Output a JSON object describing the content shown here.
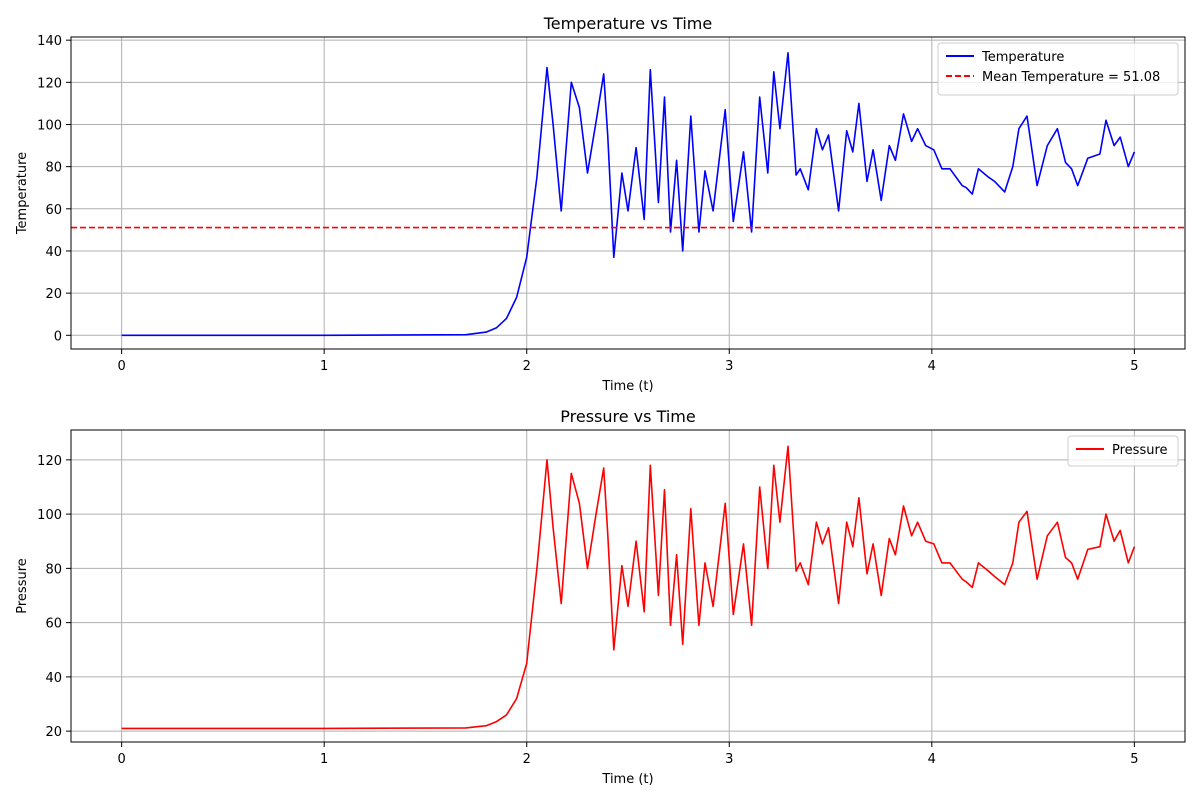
{
  "chart_data": [
    {
      "type": "line",
      "title": "Temperature vs Time",
      "xlabel": "Time (t)",
      "ylabel": "Temperature",
      "xlim": [
        -0.25,
        5.25
      ],
      "ylim": [
        -6.5,
        141.5
      ],
      "xticks": [
        0,
        1,
        2,
        3,
        4,
        5
      ],
      "yticks": [
        0,
        20,
        40,
        60,
        80,
        100,
        120,
        140
      ],
      "grid": true,
      "legend_position": "top-right",
      "series": [
        {
          "name": "Temperature",
          "color": "#0000ff",
          "style": "solid",
          "x": [
            0,
            1.0,
            1.7,
            1.8,
            1.85,
            1.9,
            1.95,
            2.0,
            2.05,
            2.1,
            2.13,
            2.17,
            2.22,
            2.26,
            2.3,
            2.34,
            2.38,
            2.4,
            2.43,
            2.47,
            2.5,
            2.54,
            2.58,
            2.61,
            2.65,
            2.68,
            2.71,
            2.74,
            2.77,
            2.81,
            2.85,
            2.88,
            2.92,
            2.98,
            3.02,
            3.07,
            3.11,
            3.15,
            3.19,
            3.22,
            3.25,
            3.29,
            3.33,
            3.35,
            3.39,
            3.43,
            3.46,
            3.49,
            3.54,
            3.58,
            3.61,
            3.64,
            3.68,
            3.71,
            3.75,
            3.79,
            3.82,
            3.86,
            3.9,
            3.93,
            3.97,
            4.01,
            4.05,
            4.09,
            4.15,
            4.17,
            4.2,
            4.23,
            4.28,
            4.31,
            4.36,
            4.4,
            4.43,
            4.47,
            4.52,
            4.57,
            4.62,
            4.66,
            4.69,
            4.72,
            4.77,
            4.83,
            4.86,
            4.9,
            4.93,
            4.97,
            5.0
          ],
          "y": [
            0,
            0,
            0.3,
            1.5,
            3.5,
            8,
            18,
            37,
            75,
            127,
            100,
            59,
            120,
            108,
            77,
            100,
            124,
            95,
            37,
            77,
            59,
            89,
            55,
            126,
            63,
            113,
            49,
            83,
            40,
            104,
            49,
            78,
            59,
            107,
            54,
            87,
            49,
            113,
            77,
            125,
            98,
            134,
            76,
            79,
            69,
            98,
            88,
            95,
            59,
            97,
            87,
            110,
            73,
            88,
            64,
            90,
            83,
            105,
            92,
            98,
            90,
            88,
            79,
            79,
            71,
            70,
            67,
            79,
            75,
            73,
            68,
            80,
            98,
            104,
            71,
            90,
            98,
            82,
            79,
            71,
            84,
            86,
            102,
            90,
            94,
            80,
            87
          ]
        },
        {
          "name": "Mean Temperature = 51.08",
          "color": "#ff0000",
          "style": "dashed",
          "x": [
            -0.25,
            5.25
          ],
          "y": [
            51.08,
            51.08
          ]
        }
      ]
    },
    {
      "type": "line",
      "title": "Pressure vs Time",
      "xlabel": "Time (t)",
      "ylabel": "Pressure",
      "xlim": [
        -0.25,
        5.25
      ],
      "ylim": [
        16,
        131
      ],
      "xticks": [
        0,
        1,
        2,
        3,
        4,
        5
      ],
      "yticks": [
        20,
        40,
        60,
        80,
        100,
        120
      ],
      "grid": true,
      "legend_position": "top-right",
      "series": [
        {
          "name": "Pressure",
          "color": "#ff0000",
          "style": "solid",
          "x": [
            0,
            1.0,
            1.7,
            1.8,
            1.85,
            1.9,
            1.95,
            2.0,
            2.05,
            2.1,
            2.13,
            2.17,
            2.22,
            2.26,
            2.3,
            2.34,
            2.38,
            2.4,
            2.43,
            2.47,
            2.5,
            2.54,
            2.58,
            2.61,
            2.65,
            2.68,
            2.71,
            2.74,
            2.77,
            2.81,
            2.85,
            2.88,
            2.92,
            2.98,
            3.02,
            3.07,
            3.11,
            3.15,
            3.19,
            3.22,
            3.25,
            3.29,
            3.33,
            3.35,
            3.39,
            3.43,
            3.46,
            3.49,
            3.54,
            3.58,
            3.61,
            3.64,
            3.68,
            3.71,
            3.75,
            3.79,
            3.82,
            3.86,
            3.9,
            3.93,
            3.97,
            4.01,
            4.05,
            4.09,
            4.15,
            4.17,
            4.2,
            4.23,
            4.28,
            4.31,
            4.36,
            4.4,
            4.43,
            4.47,
            4.52,
            4.57,
            4.62,
            4.66,
            4.69,
            4.72,
            4.77,
            4.83,
            4.86,
            4.9,
            4.93,
            4.97,
            5.0
          ],
          "y": [
            21,
            21,
            21.2,
            22,
            23.5,
            26,
            32,
            45,
            80,
            120,
            95,
            67,
            115,
            104,
            80,
            99,
            117,
            93,
            50,
            81,
            66,
            90,
            64,
            118,
            70,
            109,
            59,
            85,
            52,
            102,
            59,
            82,
            66,
            104,
            63,
            89,
            59,
            110,
            80,
            118,
            97,
            125,
            79,
            82,
            74,
            97,
            89,
            95,
            67,
            97,
            88,
            106,
            78,
            89,
            70,
            91,
            85,
            103,
            92,
            97,
            90,
            89,
            82,
            82,
            76,
            75,
            73,
            82,
            79,
            77,
            74,
            82,
            97,
            101,
            76,
            92,
            97,
            84,
            82,
            76,
            87,
            88,
            100,
            90,
            94,
            82,
            88
          ]
        }
      ]
    }
  ]
}
